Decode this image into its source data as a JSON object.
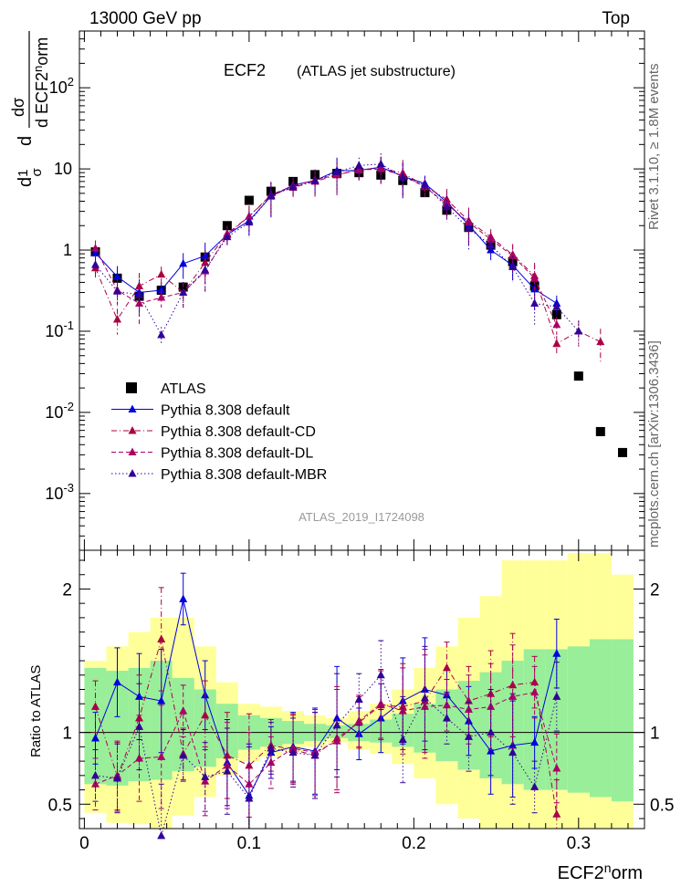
{
  "header": {
    "left": "13000 GeV pp",
    "right": "Top"
  },
  "side_labels": {
    "rivet": "Rivet 3.1.10, ≥ 1.8M events",
    "mcplots": "mcplots.cern.ch [arXiv:1306.3436]"
  },
  "chart_data": [
    {
      "type": "scatter",
      "title": "ECF2",
      "subtitle": "(ATLAS jet substructure)",
      "watermark": "ATLAS_2019_I1724098",
      "ylabel": "1/σ dσ/d ECF2norm",
      "xlabel": "ECF2norm",
      "yscale": "log",
      "ylim": [
        0.0002,
        500
      ],
      "xlim": [
        -0.003,
        0.34
      ],
      "y_tick_labels": [
        "10^-3",
        "10^-2",
        "10^-1",
        "1",
        "10",
        "10^2"
      ],
      "legend_position": "bottom-left",
      "series": [
        {
          "name": "ATLAS",
          "color": "#000000",
          "marker": "square",
          "x": [
            0.0067,
            0.02,
            0.0333,
            0.0467,
            0.06,
            0.0733,
            0.0867,
            0.1,
            0.1133,
            0.1267,
            0.14,
            0.1533,
            0.1667,
            0.18,
            0.1933,
            0.2067,
            0.22,
            0.2333,
            0.2467,
            0.26,
            0.2733,
            0.2867,
            0.3,
            0.3133,
            0.3267
          ],
          "values": [
            0.95,
            0.45,
            0.27,
            0.32,
            0.35,
            0.82,
            2.0,
            4.1,
            5.3,
            7.0,
            8.5,
            8.8,
            9.0,
            8.4,
            7.2,
            5.1,
            3.1,
            1.9,
            1.15,
            0.72,
            0.36,
            0.16,
            0.028,
            0.0058,
            0.0032
          ]
        },
        {
          "name": "Pythia 8.308 default",
          "color": "#0000dd",
          "marker": "triangle",
          "line": "solid",
          "x": [
            0.0067,
            0.02,
            0.0333,
            0.0467,
            0.06,
            0.0733,
            0.0867,
            0.1,
            0.1133,
            0.1267,
            0.14,
            0.1533,
            0.1667,
            0.18,
            0.1933,
            0.2067,
            0.22,
            0.2333,
            0.2467,
            0.26,
            0.2733,
            0.2867
          ],
          "values": [
            0.92,
            0.47,
            0.3,
            0.32,
            0.68,
            0.85,
            1.55,
            2.3,
            4.6,
            6.3,
            7.2,
            9.5,
            9.6,
            10.5,
            8.1,
            6.6,
            3.9,
            2.05,
            1.0,
            0.65,
            0.33,
            0.22
          ]
        },
        {
          "name": "Pythia 8.308 default-CD",
          "color": "#aa0044",
          "marker": "triangle",
          "line": "dashdot",
          "x": [
            0.0067,
            0.02,
            0.0333,
            0.0467,
            0.06,
            0.0733,
            0.0867,
            0.1,
            0.1133,
            0.1267,
            0.14,
            0.1533,
            0.1667,
            0.18,
            0.1933,
            0.2067,
            0.22,
            0.2333,
            0.2467,
            0.26,
            0.2733,
            0.2867,
            0.3,
            0.3133
          ],
          "values": [
            0.6,
            0.14,
            0.36,
            0.5,
            0.3,
            0.7,
            1.6,
            2.6,
            4.7,
            5.9,
            7.0,
            8.4,
            9.8,
            10.2,
            8.9,
            6.2,
            4.2,
            2.3,
            1.45,
            0.88,
            0.48,
            0.07,
            0.1,
            0.074
          ]
        },
        {
          "name": "Pythia 8.308 default-DL",
          "color": "#aa0066",
          "marker": "triangle",
          "line": "dashed",
          "x": [
            0.0067,
            0.02,
            0.0333,
            0.0467,
            0.06,
            0.0733,
            0.0867,
            0.1,
            0.1133,
            0.1267,
            0.14,
            0.1533,
            0.1667,
            0.18,
            0.1933,
            0.2067,
            0.22,
            0.2333,
            0.2467,
            0.26,
            0.2733,
            0.2867
          ],
          "values": [
            1.05,
            0.32,
            0.22,
            0.26,
            0.3,
            0.55,
            1.55,
            2.6,
            4.8,
            6.2,
            7.3,
            8.5,
            9.7,
            10.0,
            8.3,
            6.0,
            3.7,
            2.2,
            1.35,
            0.85,
            0.45,
            0.12
          ]
        },
        {
          "name": "Pythia 8.308 default-MBR",
          "color": "#330099",
          "marker": "triangle",
          "line": "dotted",
          "x": [
            0.0067,
            0.02,
            0.0333,
            0.0467,
            0.06,
            0.0733,
            0.0867,
            0.1,
            0.1133,
            0.1267,
            0.14,
            0.1533,
            0.1667,
            0.18,
            0.1933,
            0.2067,
            0.22,
            0.2333,
            0.2467,
            0.26,
            0.2733,
            0.2867,
            0.3
          ],
          "values": [
            0.66,
            0.31,
            0.28,
            0.09,
            0.3,
            0.57,
            1.45,
            2.2,
            4.7,
            6.0,
            7.1,
            9.2,
            11.0,
            11.5,
            7.9,
            6.3,
            3.4,
            1.85,
            1.15,
            0.62,
            0.22,
            0.2,
            0.1
          ]
        }
      ]
    },
    {
      "type": "scatter",
      "ylabel": "Ratio to ATLAS",
      "xlabel": "ECF2norm",
      "ylim": [
        0.33,
        2.27
      ],
      "xlim": [
        -0.003,
        0.34
      ],
      "y_ticks": [
        0.5,
        1,
        2
      ],
      "x_ticks": [
        0,
        0.1,
        0.2,
        0.3
      ],
      "reference_line": 1,
      "bands": {
        "x_edges": [
          0.0,
          0.0133,
          0.0267,
          0.04,
          0.0533,
          0.0667,
          0.08,
          0.0933,
          0.1067,
          0.12,
          0.1333,
          0.1467,
          0.16,
          0.1733,
          0.1867,
          0.2,
          0.2133,
          0.2267,
          0.24,
          0.2533,
          0.2667,
          0.28,
          0.2933,
          0.3067,
          0.32,
          0.3333
        ],
        "inner_color": "#99ee99",
        "outer_color": "#ffff99",
        "inner": [
          [
            0.64,
            1.45
          ],
          [
            0.63,
            1.43
          ],
          [
            0.66,
            1.45
          ],
          [
            0.67,
            1.5
          ],
          [
            0.73,
            1.38
          ],
          [
            0.76,
            1.3
          ],
          [
            0.82,
            1.2
          ],
          [
            0.88,
            1.12
          ],
          [
            0.9,
            1.1
          ],
          [
            0.92,
            1.08
          ],
          [
            0.94,
            1.06
          ],
          [
            0.96,
            1.05
          ],
          [
            0.94,
            1.06
          ],
          [
            0.93,
            1.09
          ],
          [
            0.9,
            1.13
          ],
          [
            0.86,
            1.2
          ],
          [
            0.8,
            1.3
          ],
          [
            0.74,
            1.36
          ],
          [
            0.68,
            1.42
          ],
          [
            0.64,
            1.5
          ],
          [
            0.6,
            1.58
          ],
          [
            0.6,
            1.58
          ],
          [
            0.58,
            1.6
          ],
          [
            0.55,
            1.65
          ],
          [
            0.52,
            1.65
          ]
        ],
        "outer": [
          [
            0.44,
            1.5
          ],
          [
            0.37,
            1.6
          ],
          [
            0.36,
            1.7
          ],
          [
            0.33,
            1.8
          ],
          [
            0.42,
            1.8
          ],
          [
            0.55,
            1.6
          ],
          [
            0.7,
            1.35
          ],
          [
            0.8,
            1.2
          ],
          [
            0.83,
            1.18
          ],
          [
            0.87,
            1.15
          ],
          [
            0.9,
            1.12
          ],
          [
            0.93,
            1.1
          ],
          [
            0.88,
            1.15
          ],
          [
            0.85,
            1.2
          ],
          [
            0.78,
            1.3
          ],
          [
            0.68,
            1.45
          ],
          [
            0.5,
            1.6
          ],
          [
            0.4,
            1.8
          ],
          [
            0.33,
            1.95
          ],
          [
            0.33,
            2.2
          ],
          [
            0.33,
            2.2
          ],
          [
            0.33,
            2.2
          ],
          [
            0.33,
            2.25
          ],
          [
            0.33,
            2.25
          ],
          [
            0.33,
            2.1
          ]
        ]
      },
      "series": [
        {
          "name": "Pythia 8.308 default",
          "color": "#0000dd",
          "x": [
            0.0067,
            0.02,
            0.0333,
            0.0467,
            0.06,
            0.0733,
            0.0867,
            0.1,
            0.1133,
            0.1267,
            0.14,
            0.1533,
            0.1667,
            0.18,
            0.1933,
            0.2067,
            0.22,
            0.2333,
            0.2467,
            0.26,
            0.2733,
            0.2867
          ],
          "values": [
            0.96,
            1.35,
            1.25,
            1.22,
            1.93,
            1.26,
            0.79,
            0.56,
            0.86,
            0.9,
            0.87,
            1.1,
            0.99,
            1.1,
            1.22,
            1.3,
            1.26,
            1.08,
            0.87,
            0.91,
            0.93,
            1.55
          ]
        },
        {
          "name": "Pythia 8.308 default-CD",
          "color": "#aa0044",
          "x": [
            0.0067,
            0.02,
            0.0333,
            0.0467,
            0.06,
            0.0733,
            0.0867,
            0.1,
            0.1133,
            0.1267,
            0.14,
            0.1533,
            0.1667,
            0.18,
            0.1933,
            0.2067,
            0.22,
            0.2333,
            0.2467,
            0.26,
            0.2733,
            0.2867
          ],
          "values": [
            1.18,
            0.69,
            1.1,
            1.65,
            0.85,
            1.12,
            0.84,
            0.77,
            0.91,
            0.88,
            0.84,
            0.96,
            1.07,
            1.19,
            1.18,
            1.22,
            1.45,
            1.22,
            1.27,
            1.33,
            1.35,
            0.43
          ]
        },
        {
          "name": "Pythia 8.308 default-DL",
          "color": "#aa0066",
          "x": [
            0.0067,
            0.02,
            0.0333,
            0.0467,
            0.06,
            0.0733,
            0.0867,
            0.1,
            0.1133,
            0.1267,
            0.14,
            0.1533,
            0.1667,
            0.18,
            0.1933,
            0.2067,
            0.22,
            0.2333,
            0.2467,
            0.26,
            0.2733,
            0.2867
          ],
          "values": [
            0.64,
            0.7,
            0.82,
            0.83,
            1.15,
            0.66,
            0.77,
            0.64,
            0.79,
            0.89,
            0.86,
            0.94,
            1.08,
            1.2,
            1.15,
            1.18,
            1.19,
            1.16,
            1.18,
            1.25,
            1.28,
            0.75
          ]
        },
        {
          "name": "Pythia 8.308 default-MBR",
          "color": "#330099",
          "x": [
            0.0067,
            0.02,
            0.0333,
            0.0467,
            0.06,
            0.0733,
            0.0867,
            0.1,
            0.1133,
            0.1267,
            0.14,
            0.1533,
            0.1667,
            0.18,
            0.1933,
            0.2067,
            0.22,
            0.2333,
            0.2467,
            0.26,
            0.2733,
            0.2867
          ],
          "values": [
            0.7,
            0.68,
            1.04,
            0.28,
            0.84,
            0.69,
            0.73,
            0.54,
            0.89,
            0.86,
            0.84,
            1.05,
            1.23,
            1.4,
            0.95,
            1.24,
            1.1,
            0.97,
            1.0,
            0.86,
            0.62,
            1.25
          ]
        }
      ]
    }
  ]
}
